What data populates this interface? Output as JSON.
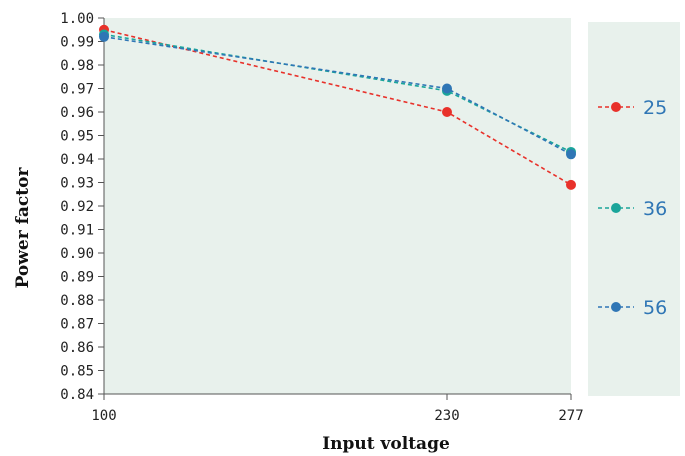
{
  "chart_data": {
    "type": "line",
    "x": [
      100,
      230,
      277
    ],
    "xlabel": "Input voltage",
    "ylabel": "Power factor",
    "ylim": [
      0.84,
      1.0
    ],
    "y_ticks": [
      "0.84",
      "0.85",
      "0.86",
      "0.87",
      "0.88",
      "0.89",
      "0.90",
      "0.91",
      "0.92",
      "0.93",
      "0.94",
      "0.95",
      "0.96",
      "0.97",
      "0.98",
      "0.99",
      "1.00"
    ],
    "x_ticks": [
      "100",
      "230",
      "277"
    ],
    "grid": false,
    "legend_position": "right",
    "background_color": "#e8f1ec",
    "series": [
      {
        "name": "25",
        "values": [
          0.995,
          0.96,
          0.929
        ],
        "color": "#e8312a",
        "line_style": "dashed"
      },
      {
        "name": "36",
        "values": [
          0.993,
          0.969,
          0.943
        ],
        "color": "#1aa59a",
        "line_style": "dashed"
      },
      {
        "name": "56",
        "values": [
          0.992,
          0.97,
          0.942
        ],
        "color": "#2f76b5",
        "line_style": "dashed"
      }
    ]
  }
}
